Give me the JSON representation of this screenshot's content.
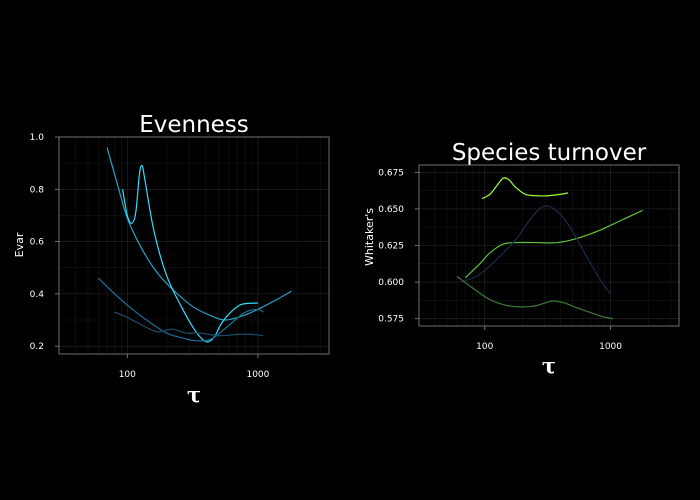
{
  "chart_data": [
    {
      "type": "line",
      "title": "Evenness",
      "xlabel": "τ",
      "ylabel": "Evar",
      "x_scale": "log",
      "xlim": [
        30,
        3500
      ],
      "ylim": [
        0.17,
        1.0
      ],
      "x_ticks": [
        100,
        1000
      ],
      "x_tick_labels": [
        "100",
        "1000"
      ],
      "y_ticks": [
        0.2,
        0.4,
        0.6,
        0.8,
        1.0
      ],
      "y_tick_labels": [
        "0.2",
        "0.4",
        "0.6",
        "0.8",
        "1.0"
      ],
      "grid": true,
      "series": [
        {
          "color": "#2a9fc4",
          "points": [
            [
              70,
              0.96
            ],
            [
              85,
              0.81
            ],
            [
              100,
              0.69
            ],
            [
              130,
              0.57
            ],
            [
              170,
              0.48
            ],
            [
              230,
              0.41
            ],
            [
              320,
              0.35
            ],
            [
              420,
              0.32
            ],
            [
              550,
              0.3
            ],
            [
              700,
              0.31
            ],
            [
              900,
              0.33
            ],
            [
              1300,
              0.37
            ],
            [
              1800,
              0.41
            ]
          ]
        },
        {
          "color": "#2be0ff",
          "points": [
            [
              92,
              0.8
            ],
            [
              100,
              0.7
            ],
            [
              108,
              0.67
            ],
            [
              116,
              0.71
            ],
            [
              124,
              0.86
            ],
            [
              130,
              0.89
            ],
            [
              136,
              0.84
            ],
            [
              160,
              0.64
            ],
            [
              200,
              0.47
            ],
            [
              260,
              0.35
            ],
            [
              330,
              0.26
            ],
            [
              390,
              0.22
            ],
            [
              430,
              0.22
            ],
            [
              470,
              0.24
            ],
            [
              530,
              0.29
            ],
            [
              620,
              0.33
            ],
            [
              750,
              0.36
            ],
            [
              1000,
              0.365
            ]
          ]
        },
        {
          "color": "#1f6e96",
          "points": [
            [
              60,
              0.46
            ],
            [
              80,
              0.4
            ],
            [
              110,
              0.34
            ],
            [
              150,
              0.29
            ],
            [
              200,
              0.25
            ],
            [
              270,
              0.23
            ],
            [
              350,
              0.22
            ],
            [
              450,
              0.23
            ],
            [
              600,
              0.28
            ],
            [
              800,
              0.33
            ],
            [
              1000,
              0.34
            ],
            [
              1100,
              0.33
            ]
          ]
        },
        {
          "color": "#1c4c66",
          "points": [
            [
              80,
              0.33
            ],
            [
              100,
              0.31
            ],
            [
              130,
              0.28
            ],
            [
              170,
              0.255
            ],
            [
              220,
              0.265
            ],
            [
              280,
              0.25
            ],
            [
              360,
              0.25
            ],
            [
              500,
              0.24
            ],
            [
              700,
              0.245
            ],
            [
              900,
              0.245
            ],
            [
              1100,
              0.24
            ]
          ]
        }
      ]
    },
    {
      "type": "line",
      "title": "Species turnover",
      "xlabel": "τ",
      "ylabel": "Whitaker's",
      "x_scale": "log",
      "xlim": [
        30,
        3500
      ],
      "ylim": [
        0.57,
        0.68
      ],
      "x_ticks": [
        100,
        1000
      ],
      "x_tick_labels": [
        "100",
        "1000"
      ],
      "y_ticks": [
        0.575,
        0.6,
        0.625,
        0.65,
        0.675
      ],
      "y_tick_labels": [
        "0.575",
        "0.600",
        "0.625",
        "0.650",
        "0.675"
      ],
      "grid": true,
      "series": [
        {
          "color": "#9cff33",
          "points": [
            [
              95,
              0.657
            ],
            [
              110,
              0.66
            ],
            [
              125,
              0.666
            ],
            [
              140,
              0.671
            ],
            [
              155,
              0.67
            ],
            [
              175,
              0.665
            ],
            [
              210,
              0.66
            ],
            [
              260,
              0.659
            ],
            [
              320,
              0.659
            ],
            [
              400,
              0.66
            ],
            [
              460,
              0.661
            ]
          ]
        },
        {
          "color": "#5fc23a",
          "points": [
            [
              70,
              0.603
            ],
            [
              90,
              0.612
            ],
            [
              110,
              0.62
            ],
            [
              140,
              0.626
            ],
            [
              180,
              0.627
            ],
            [
              250,
              0.627
            ],
            [
              380,
              0.627
            ],
            [
              550,
              0.63
            ],
            [
              800,
              0.635
            ],
            [
              1200,
              0.642
            ],
            [
              1800,
              0.649
            ]
          ]
        },
        {
          "color": "#1a2c4a",
          "points": [
            [
              65,
              0.6
            ],
            [
              90,
              0.605
            ],
            [
              130,
              0.617
            ],
            [
              180,
              0.63
            ],
            [
              240,
              0.645
            ],
            [
              300,
              0.652
            ],
            [
              380,
              0.648
            ],
            [
              480,
              0.637
            ],
            [
              650,
              0.617
            ],
            [
              850,
              0.6
            ],
            [
              1000,
              0.592
            ]
          ]
        },
        {
          "color": "#3d7a33",
          "points": [
            [
              60,
              0.604
            ],
            [
              80,
              0.596
            ],
            [
              110,
              0.588
            ],
            [
              150,
              0.584
            ],
            [
              200,
              0.583
            ],
            [
              260,
              0.584
            ],
            [
              340,
              0.587
            ],
            [
              420,
              0.586
            ],
            [
              520,
              0.583
            ],
            [
              700,
              0.579
            ],
            [
              900,
              0.576
            ],
            [
              1050,
              0.575
            ]
          ]
        }
      ]
    }
  ]
}
